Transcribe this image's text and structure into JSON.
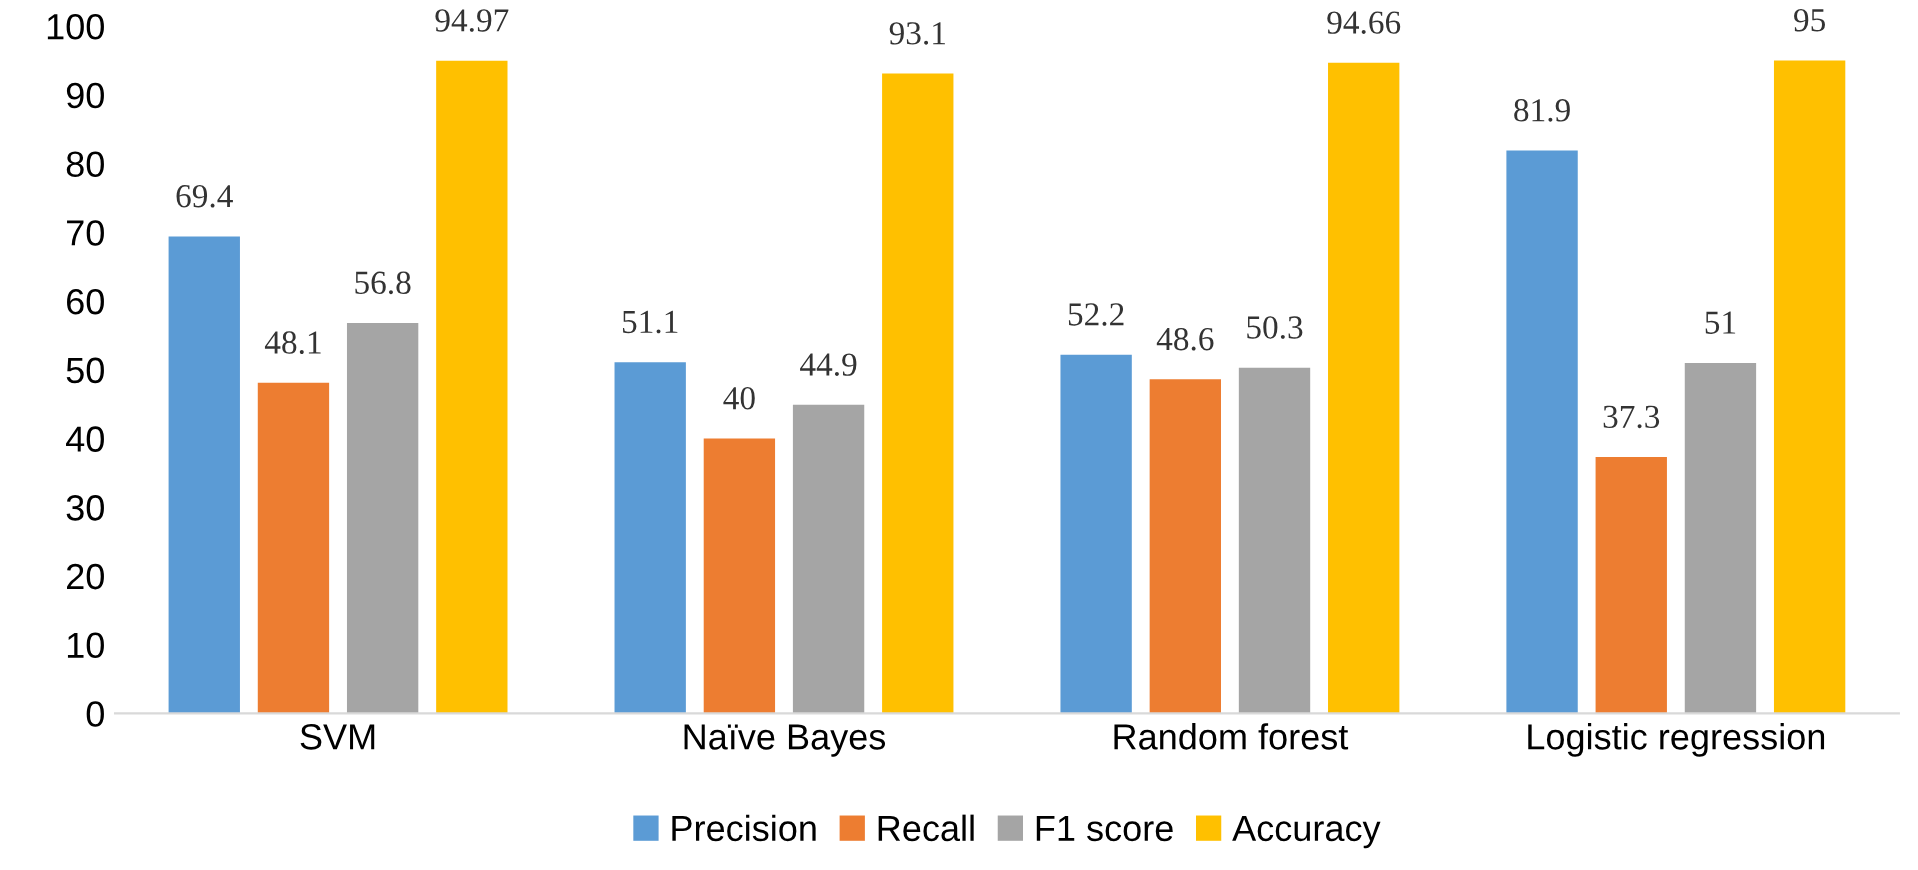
{
  "chart_data": {
    "type": "bar",
    "categories": [
      "SVM",
      "Naïve Bayes",
      "Random forest",
      "Logistic regression"
    ],
    "series": [
      {
        "name": "Precision",
        "color": "#5b9bd5",
        "values": [
          69.4,
          51.1,
          52.2,
          81.9
        ]
      },
      {
        "name": "Recall",
        "color": "#ed7d31",
        "values": [
          48.1,
          40,
          48.6,
          37.3
        ]
      },
      {
        "name": "F1 score",
        "color": "#a5a5a5",
        "values": [
          56.8,
          44.9,
          50.3,
          51
        ]
      },
      {
        "name": "Accuracy",
        "color": "#ffc000",
        "values": [
          94.97,
          93.1,
          94.66,
          95
        ]
      }
    ],
    "ylim": [
      0,
      100
    ],
    "yticks": [
      0,
      10,
      20,
      30,
      40,
      50,
      60,
      70,
      80,
      90,
      100
    ],
    "data_labels": true,
    "grid": false,
    "legend": "bottom"
  }
}
